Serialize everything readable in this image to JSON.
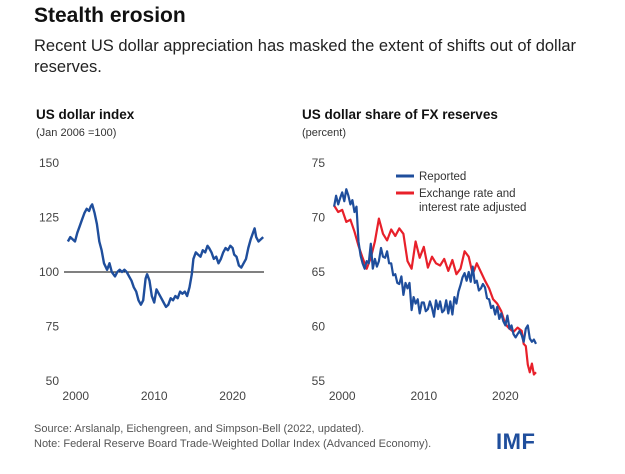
{
  "header": {
    "title": "Stealth erosion",
    "subtitle": "Recent US dollar appreciation has masked the extent of shifts out of dollar reserves."
  },
  "footer": {
    "source": "Source: Arslanalp, Eichengreen, and Simpson-Bell (2022, updated).",
    "note": "Note: Federal Reserve Board Trade-Weighted Dollar Index (Advanced Economy).",
    "logo": "IMF"
  },
  "colors": {
    "reported": "#1f4e9c",
    "adjusted": "#e8202a",
    "baseline": "#000000"
  },
  "chart_data": [
    {
      "type": "line",
      "title": "US dollar index",
      "subtitle": "(Jan 2006 =100)",
      "xlim": [
        1998.5,
        2024
      ],
      "ylim": [
        50,
        150
      ],
      "xticks": [
        2000,
        2010,
        2020
      ],
      "yticks": [
        50,
        75,
        100,
        125,
        150
      ],
      "reference_line": 100,
      "series": [
        {
          "key": "reported",
          "x": [
            1999.0,
            1999.3,
            1999.6,
            1999.9,
            2000.2,
            2000.5,
            2000.8,
            2001.1,
            2001.4,
            2001.7,
            2001.9,
            2002.1,
            2002.4,
            2002.7,
            2003.0,
            2003.3,
            2003.6,
            2004.0,
            2004.3,
            2004.6,
            2005.0,
            2005.3,
            2005.6,
            2005.9,
            2006.2,
            2006.5,
            2006.8,
            2007.1,
            2007.4,
            2007.7,
            2008.0,
            2008.3,
            2008.6,
            2008.9,
            2009.1,
            2009.4,
            2009.7,
            2010.0,
            2010.3,
            2010.6,
            2010.9,
            2011.2,
            2011.5,
            2011.8,
            2012.1,
            2012.4,
            2012.7,
            2013.0,
            2013.3,
            2013.6,
            2013.9,
            2014.2,
            2014.5,
            2014.8,
            2015.0,
            2015.3,
            2015.6,
            2015.9,
            2016.2,
            2016.5,
            2016.8,
            2017.0,
            2017.3,
            2017.6,
            2017.9,
            2018.2,
            2018.5,
            2018.8,
            2019.1,
            2019.4,
            2019.7,
            2020.0,
            2020.2,
            2020.5,
            2020.8,
            2021.1,
            2021.4,
            2021.7,
            2022.0,
            2022.3,
            2022.6,
            2022.8,
            2023.0,
            2023.3,
            2023.6,
            2023.9
          ],
          "y": [
            114,
            116,
            115,
            114,
            118,
            121,
            124,
            127,
            129,
            128,
            130,
            131,
            127,
            122,
            114,
            110,
            104,
            101,
            104,
            100,
            98,
            100,
            101,
            100,
            101,
            100,
            98,
            96,
            93,
            91,
            87,
            85,
            87,
            97,
            99,
            96,
            89,
            86,
            92,
            90,
            88,
            86,
            84,
            85,
            88,
            87,
            89,
            88,
            91,
            90,
            91,
            89,
            93,
            99,
            106,
            109,
            108,
            107,
            110,
            109,
            112,
            111,
            109,
            106,
            107,
            104,
            106,
            109,
            111,
            110,
            112,
            111,
            108,
            107,
            103,
            102,
            104,
            106,
            111,
            115,
            118,
            120,
            116,
            114,
            115,
            116
          ]
        }
      ]
    },
    {
      "type": "line",
      "title": "US dollar share of FX reserves",
      "subtitle": "(percent)",
      "xlim": [
        1998.5,
        2024
      ],
      "ylim": [
        55,
        75
      ],
      "xticks": [
        2000,
        2010,
        2020
      ],
      "yticks": [
        55,
        60,
        65,
        70,
        75
      ],
      "legend": "top-right",
      "series": [
        {
          "key": "reported",
          "name": "Reported",
          "x": [
            1999.0,
            1999.25,
            1999.5,
            1999.75,
            2000.0,
            2000.25,
            2000.5,
            2000.75,
            2001.0,
            2001.25,
            2001.5,
            2001.75,
            2002.0,
            2002.25,
            2002.5,
            2002.75,
            2003.0,
            2003.25,
            2003.5,
            2003.75,
            2004.0,
            2004.25,
            2004.5,
            2004.75,
            2005.0,
            2005.25,
            2005.5,
            2005.75,
            2006.0,
            2006.25,
            2006.5,
            2006.75,
            2007.0,
            2007.25,
            2007.5,
            2007.75,
            2008.0,
            2008.25,
            2008.5,
            2008.75,
            2009.0,
            2009.25,
            2009.5,
            2009.75,
            2010.0,
            2010.25,
            2010.5,
            2010.75,
            2011.0,
            2011.25,
            2011.5,
            2011.75,
            2012.0,
            2012.25,
            2012.5,
            2012.75,
            2013.0,
            2013.25,
            2013.5,
            2013.75,
            2014.0,
            2014.25,
            2014.5,
            2014.75,
            2015.0,
            2015.25,
            2015.5,
            2015.75,
            2016.0,
            2016.25,
            2016.5,
            2016.75,
            2017.0,
            2017.25,
            2017.5,
            2017.75,
            2018.0,
            2018.25,
            2018.5,
            2018.75,
            2019.0,
            2019.25,
            2019.5,
            2019.75,
            2020.0,
            2020.25,
            2020.5,
            2020.75,
            2021.0,
            2021.25,
            2021.5,
            2021.75,
            2022.0,
            2022.25,
            2022.5,
            2022.75,
            2023.0,
            2023.25,
            2023.5,
            2023.75
          ],
          "y": [
            71.0,
            72.0,
            71.2,
            71.8,
            72.3,
            71.5,
            72.6,
            72.0,
            71.2,
            71.6,
            70.5,
            71.0,
            67.8,
            66.5,
            65.8,
            65.3,
            66.0,
            65.8,
            67.6,
            65.3,
            66.2,
            65.5,
            66.0,
            67.2,
            66.4,
            66.3,
            66.9,
            65.8,
            65.8,
            64.7,
            64.8,
            64.0,
            63.9,
            64.6,
            62.9,
            64.0,
            63.5,
            64.0,
            61.5,
            62.7,
            62.1,
            62.5,
            61.2,
            62.2,
            62.2,
            61.4,
            61.6,
            62.3,
            61.7,
            60.9,
            62.4,
            61.6,
            62.3,
            61.3,
            61.5,
            62.4,
            61.2,
            62.3,
            61.1,
            62.7,
            62.1,
            63.2,
            63.8,
            64.5,
            64.9,
            64.2,
            65.0,
            64.1,
            65.5,
            64.0,
            64.2,
            63.3,
            63.5,
            63.9,
            63.6,
            62.6,
            62.5,
            61.7,
            61.9,
            61.1,
            61.8,
            60.7,
            61.2,
            60.5,
            60.1,
            61.0,
            59.8,
            60.1,
            59.3,
            59.0,
            59.3,
            59.6,
            59.2,
            58.6,
            59.8,
            60.1,
            58.9,
            58.6,
            58.8,
            58.4
          ]
        },
        {
          "key": "adjusted",
          "name": "Exchange rate and interest rate adjusted",
          "x": [
            1999.0,
            1999.5,
            2000.0,
            2000.5,
            2001.0,
            2001.5,
            2002.0,
            2002.5,
            2003.0,
            2003.5,
            2004.0,
            2004.5,
            2005.0,
            2005.5,
            2006.0,
            2006.5,
            2007.0,
            2007.5,
            2008.0,
            2008.5,
            2009.0,
            2009.5,
            2010.0,
            2010.5,
            2011.0,
            2011.5,
            2012.0,
            2012.5,
            2013.0,
            2013.5,
            2014.0,
            2014.5,
            2015.0,
            2015.5,
            2016.0,
            2016.5,
            2017.0,
            2017.5,
            2018.0,
            2018.5,
            2019.0,
            2019.5,
            2020.0,
            2020.5,
            2021.0,
            2021.5,
            2022.0,
            2022.25,
            2022.5,
            2022.75,
            2023.0,
            2023.25,
            2023.5,
            2023.75
          ],
          "y": [
            71.1,
            70.5,
            70.7,
            69.6,
            69.8,
            68.7,
            67.4,
            66.3,
            65.3,
            66.3,
            67.8,
            69.9,
            68.5,
            67.9,
            68.9,
            68.3,
            69.0,
            68.5,
            66.0,
            65.3,
            67.8,
            66.3,
            67.3,
            65.4,
            66.4,
            65.8,
            65.6,
            66.2,
            65.1,
            66.1,
            64.8,
            65.3,
            66.9,
            66.4,
            64.8,
            65.8,
            65.0,
            64.2,
            63.5,
            62.5,
            62.1,
            61.4,
            60.2,
            59.8,
            59.5,
            59.9,
            59.6,
            58.4,
            58.2,
            56.5,
            55.8,
            56.6,
            55.6,
            55.8
          ]
        }
      ]
    }
  ]
}
